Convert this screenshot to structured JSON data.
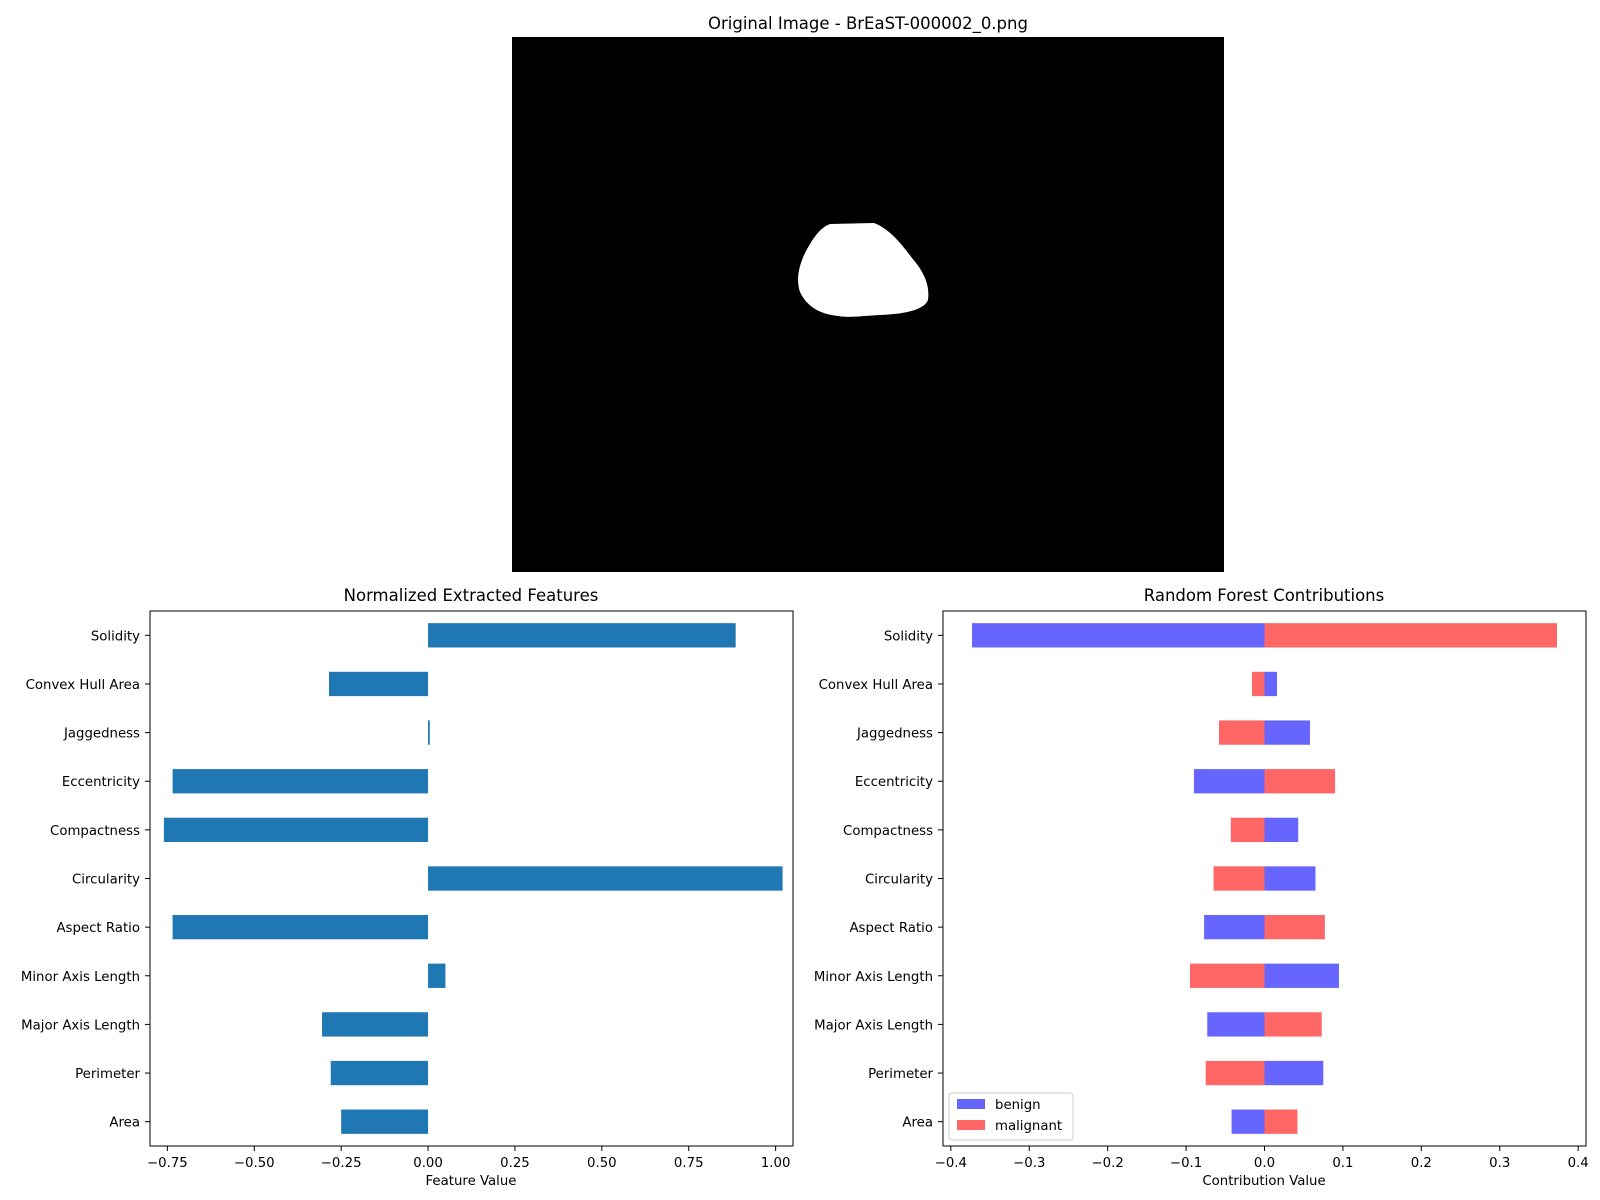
{
  "image_panel": {
    "title": "Original Image - BrEaST-000002_0.png"
  },
  "chart_data": [
    {
      "type": "bar",
      "orientation": "horizontal",
      "title": "Normalized Extracted Features",
      "xlabel": "Feature Value",
      "ylabel": "",
      "xlim": [
        -0.8,
        1.05
      ],
      "xticks": [
        "-0.75",
        "-0.50",
        "-0.25",
        "0.00",
        "0.25",
        "0.50",
        "0.75",
        "1.00"
      ],
      "xtick_values": [
        -0.75,
        -0.5,
        -0.25,
        0.0,
        0.25,
        0.5,
        0.75,
        1.0
      ],
      "categories": [
        "Area",
        "Perimeter",
        "Major Axis Length",
        "Minor Axis Length",
        "Aspect Ratio",
        "Circularity",
        "Compactness",
        "Eccentricity",
        "Jaggedness",
        "Convex Hull Area",
        "Solidity"
      ],
      "values": [
        -0.25,
        -0.28,
        -0.305,
        0.05,
        -0.735,
        1.02,
        -0.76,
        -0.735,
        0.005,
        -0.285,
        0.885
      ],
      "color": "#1f77b4",
      "grid": false
    },
    {
      "type": "bar",
      "orientation": "horizontal",
      "title": "Random Forest Contributions",
      "xlabel": "Contribution Value",
      "ylabel": "",
      "xlim": [
        -0.41,
        0.41
      ],
      "xticks": [
        "-0.4",
        "-0.3",
        "-0.2",
        "-0.1",
        "0.0",
        "0.1",
        "0.2",
        "0.3",
        "0.4"
      ],
      "xtick_values": [
        -0.4,
        -0.3,
        -0.2,
        -0.1,
        0.0,
        0.1,
        0.2,
        0.3,
        0.4
      ],
      "categories": [
        "Area",
        "Perimeter",
        "Major Axis Length",
        "Minor Axis Length",
        "Aspect Ratio",
        "Circularity",
        "Compactness",
        "Eccentricity",
        "Jaggedness",
        "Convex Hull Area",
        "Solidity"
      ],
      "series": [
        {
          "name": "benign",
          "color": "#6666ff",
          "values": [
            -0.042,
            0.075,
            -0.073,
            0.095,
            -0.077,
            0.065,
            0.043,
            -0.09,
            0.058,
            0.016,
            -0.373
          ]
        },
        {
          "name": "malignant",
          "color": "#ff6666",
          "values": [
            0.042,
            -0.075,
            0.073,
            -0.095,
            0.077,
            -0.065,
            -0.043,
            0.09,
            -0.058,
            -0.016,
            0.373
          ]
        }
      ],
      "legend": "lower-left",
      "grid": false
    }
  ]
}
